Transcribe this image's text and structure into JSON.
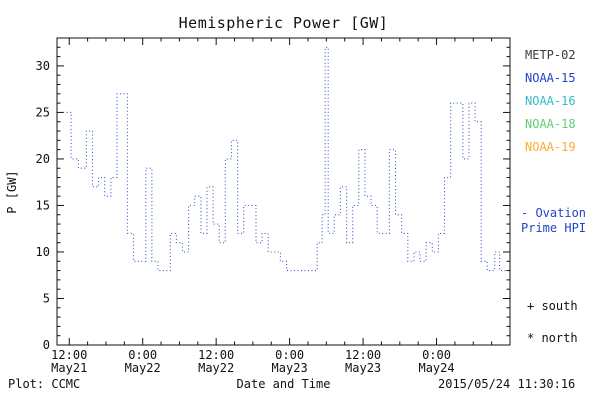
{
  "title": "Hemispheric Power [GW]",
  "footer": {
    "left": "Plot: CCMC",
    "center": "Date and Time",
    "right": "2015/05/24 11:30:16"
  },
  "legend": {
    "satellites": [
      {
        "label": "METP-02",
        "color": "#3a3a3a"
      },
      {
        "label": "NOAA-15",
        "color": "#2244cc"
      },
      {
        "label": "NOAA-16",
        "color": "#33bbcc"
      },
      {
        "label": "NOAA-18",
        "color": "#66cc77"
      },
      {
        "label": "NOAA-19",
        "color": "#ffaa33"
      }
    ],
    "ovation_line1": "- Ovation",
    "ovation_line2": "Prime HPI",
    "ovation_color": "#2244cc",
    "marker_south": "+ south",
    "marker_north": "* north"
  },
  "chart_data": {
    "type": "line",
    "title": "Hemispheric Power [GW]",
    "xlabel": "Date and Time",
    "ylabel": "P [GW]",
    "ylim": [
      0,
      33
    ],
    "xlim_hours_since_may21": [
      10,
      84
    ],
    "grid": false,
    "legend_position": "right-outside",
    "y_ticks": [
      0,
      5,
      10,
      15,
      20,
      25,
      30
    ],
    "y_minor_step": 1,
    "x_minor_step_hours": 3,
    "x_ticks": [
      {
        "hour": 12,
        "time": "12:00",
        "date": "May21"
      },
      {
        "hour": 24,
        "time": "0:00",
        "date": "May22"
      },
      {
        "hour": 36,
        "time": "12:00",
        "date": "May22"
      },
      {
        "hour": 48,
        "time": "0:00",
        "date": "May23"
      },
      {
        "hour": 60,
        "time": "12:00",
        "date": "May23"
      },
      {
        "hour": 72,
        "time": "0:00",
        "date": "May24"
      }
    ],
    "series": [
      {
        "name": "Ovation Prime hemispheric power index",
        "color": "#3355cc",
        "style": "dotted-step",
        "x_hours": [
          11,
          12.3,
          13.5,
          14.8,
          15.8,
          16.8,
          17.8,
          18.8,
          19.8,
          21.5,
          22.5,
          24.5,
          25.5,
          26.5,
          28.5,
          29.5,
          30.5,
          31.5,
          32.5,
          33.5,
          34.5,
          35.5,
          36.5,
          37.5,
          38.5,
          39.5,
          40.5,
          42.5,
          43.5,
          44.5,
          46.5,
          47.5,
          52.5,
          53.3,
          53.8,
          54.3,
          55.3,
          56.3,
          57.3,
          58.3,
          59.3,
          60.3,
          61.3,
          62.3,
          64.3,
          65.3,
          66.3,
          67.3,
          68.3,
          69.3,
          70.3,
          71.3,
          72.3,
          73.3,
          74.3,
          76.3,
          77.3,
          78.3,
          79.3,
          80.3,
          81.5,
          82.3
        ],
        "values": [
          25,
          20,
          19,
          23,
          17,
          18,
          16,
          18,
          27,
          12,
          9,
          19,
          9,
          8,
          12,
          11,
          10,
          15,
          16,
          12,
          17,
          13,
          11,
          20,
          22,
          12,
          15,
          11,
          12,
          10,
          9,
          8,
          11,
          14,
          32,
          12,
          14,
          17,
          11,
          15,
          21,
          16,
          15,
          12,
          21,
          14,
          12,
          9,
          10,
          9,
          11,
          10,
          12,
          18,
          26,
          20,
          26,
          24,
          9,
          8,
          10,
          8
        ],
        "x_end_hour": 83.3
      }
    ]
  }
}
